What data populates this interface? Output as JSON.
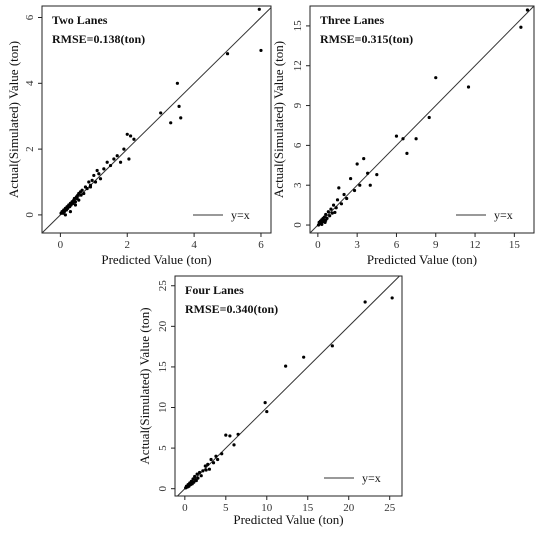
{
  "chart_data": [
    {
      "type": "scatter",
      "title": "Two Lanes",
      "annotation": "RMSE=0.138(ton)",
      "xlabel": "Predicted Value (ton)",
      "ylabel": "Actual(Simulated) Value (ton)",
      "xlim": [
        -0.55,
        6.3
      ],
      "ylim": [
        -0.55,
        6.35
      ],
      "xticks": [
        0,
        2,
        4,
        6
      ],
      "yticks": [
        0,
        2,
        4,
        6
      ],
      "legend": {
        "label": "y=x",
        "position": "bottom-right"
      },
      "grid": false,
      "x": [
        0.02,
        0.05,
        0.08,
        0.1,
        0.12,
        0.15,
        0.18,
        0.2,
        0.22,
        0.25,
        0.28,
        0.3,
        0.32,
        0.35,
        0.38,
        0.4,
        0.42,
        0.45,
        0.48,
        0.5,
        0.52,
        0.55,
        0.6,
        0.62,
        0.65,
        0.7,
        0.75,
        0.8,
        0.85,
        0.9,
        0.95,
        1.0,
        1.05,
        1.1,
        1.2,
        1.3,
        1.4,
        1.5,
        1.6,
        1.7,
        1.8,
        1.9,
        2.0,
        2.05,
        2.1,
        2.2,
        3.0,
        3.3,
        3.5,
        3.55,
        3.6,
        5.0,
        5.95,
        6.0,
        0.15,
        0.3,
        0.45,
        0.55,
        0.9,
        1.15
      ],
      "y": [
        0.05,
        0.1,
        0.05,
        0.15,
        0.1,
        0.2,
        0.15,
        0.25,
        0.2,
        0.3,
        0.25,
        0.35,
        0.3,
        0.4,
        0.35,
        0.45,
        0.5,
        0.4,
        0.55,
        0.5,
        0.6,
        0.45,
        0.7,
        0.6,
        0.75,
        0.65,
        0.85,
        0.8,
        1.0,
        0.9,
        1.05,
        1.2,
        1.0,
        1.35,
        1.1,
        1.4,
        1.6,
        1.5,
        1.7,
        1.8,
        1.6,
        2.0,
        2.45,
        1.7,
        2.4,
        2.3,
        3.1,
        2.8,
        4.0,
        3.3,
        2.95,
        4.9,
        6.25,
        5.0,
        0.0,
        0.1,
        0.3,
        0.65,
        0.85,
        1.25
      ]
    },
    {
      "type": "scatter",
      "title": "Three Lanes",
      "annotation": "RMSE=0.315(ton)",
      "xlabel": "Predicted Value (ton)",
      "ylabel": "Actual(Simulated) Value (ton)",
      "xlim": [
        -0.6,
        16.5
      ],
      "ylim": [
        -0.6,
        16.5
      ],
      "xticks": [
        0,
        3,
        6,
        9,
        12,
        15
      ],
      "yticks": [
        0,
        3,
        6,
        9,
        12,
        15
      ],
      "legend": {
        "label": "y=x",
        "position": "bottom-right"
      },
      "grid": false,
      "x": [
        0.05,
        0.1,
        0.15,
        0.2,
        0.25,
        0.3,
        0.35,
        0.4,
        0.45,
        0.5,
        0.55,
        0.6,
        0.7,
        0.8,
        0.9,
        1.0,
        1.1,
        1.2,
        1.4,
        1.5,
        1.6,
        1.8,
        2.0,
        2.2,
        2.5,
        2.8,
        3.0,
        3.2,
        3.5,
        3.8,
        4.0,
        4.5,
        6.0,
        6.5,
        6.8,
        7.5,
        8.5,
        9.0,
        11.5,
        15.5,
        16.0,
        0.3,
        0.6,
        1.3
      ],
      "y": [
        0.0,
        0.2,
        0.1,
        0.3,
        0.15,
        0.4,
        0.25,
        0.5,
        0.35,
        0.6,
        0.2,
        0.8,
        0.5,
        1.0,
        0.7,
        1.2,
        0.9,
        1.5,
        1.3,
        1.9,
        2.8,
        1.6,
        2.3,
        2.0,
        3.5,
        2.6,
        4.6,
        3.0,
        5.0,
        3.9,
        3.0,
        3.8,
        6.7,
        6.5,
        5.4,
        6.5,
        8.1,
        11.1,
        10.4,
        14.9,
        16.2,
        0.05,
        0.35,
        0.95
      ]
    },
    {
      "type": "scatter",
      "title": "Four Lanes",
      "annotation": "RMSE=0.340(ton)",
      "xlabel": "Predicted Value (ton)",
      "ylabel": "Actual(Simulated) Value (ton)",
      "xlim": [
        -1.2,
        26.5
      ],
      "ylim": [
        -0.9,
        26.2
      ],
      "xticks": [
        0,
        5,
        10,
        15,
        20,
        25
      ],
      "yticks": [
        0,
        5,
        10,
        15,
        20,
        25
      ],
      "legend": {
        "label": "y=x",
        "position": "bottom-right"
      },
      "grid": false,
      "x": [
        0.1,
        0.2,
        0.3,
        0.4,
        0.5,
        0.6,
        0.7,
        0.8,
        0.9,
        1.0,
        1.1,
        1.2,
        1.4,
        1.5,
        1.6,
        1.8,
        2.0,
        2.2,
        2.5,
        2.8,
        3.0,
        3.2,
        3.5,
        3.8,
        4.0,
        4.5,
        5.0,
        5.5,
        6.0,
        6.5,
        9.8,
        10.0,
        12.3,
        14.5,
        18.0,
        22.0,
        25.3,
        0.5,
        1.3,
        2.6
      ],
      "y": [
        0.1,
        0.3,
        0.2,
        0.5,
        0.3,
        0.7,
        0.5,
        0.9,
        0.6,
        1.2,
        0.8,
        1.5,
        1.0,
        1.8,
        1.3,
        2.0,
        1.6,
        2.2,
        2.8,
        3.0,
        2.4,
        3.6,
        3.2,
        4.0,
        3.6,
        4.3,
        6.6,
        6.5,
        5.4,
        6.7,
        10.6,
        9.5,
        15.1,
        16.2,
        17.6,
        23.0,
        23.5,
        0.4,
        1.1,
        2.3
      ]
    }
  ]
}
